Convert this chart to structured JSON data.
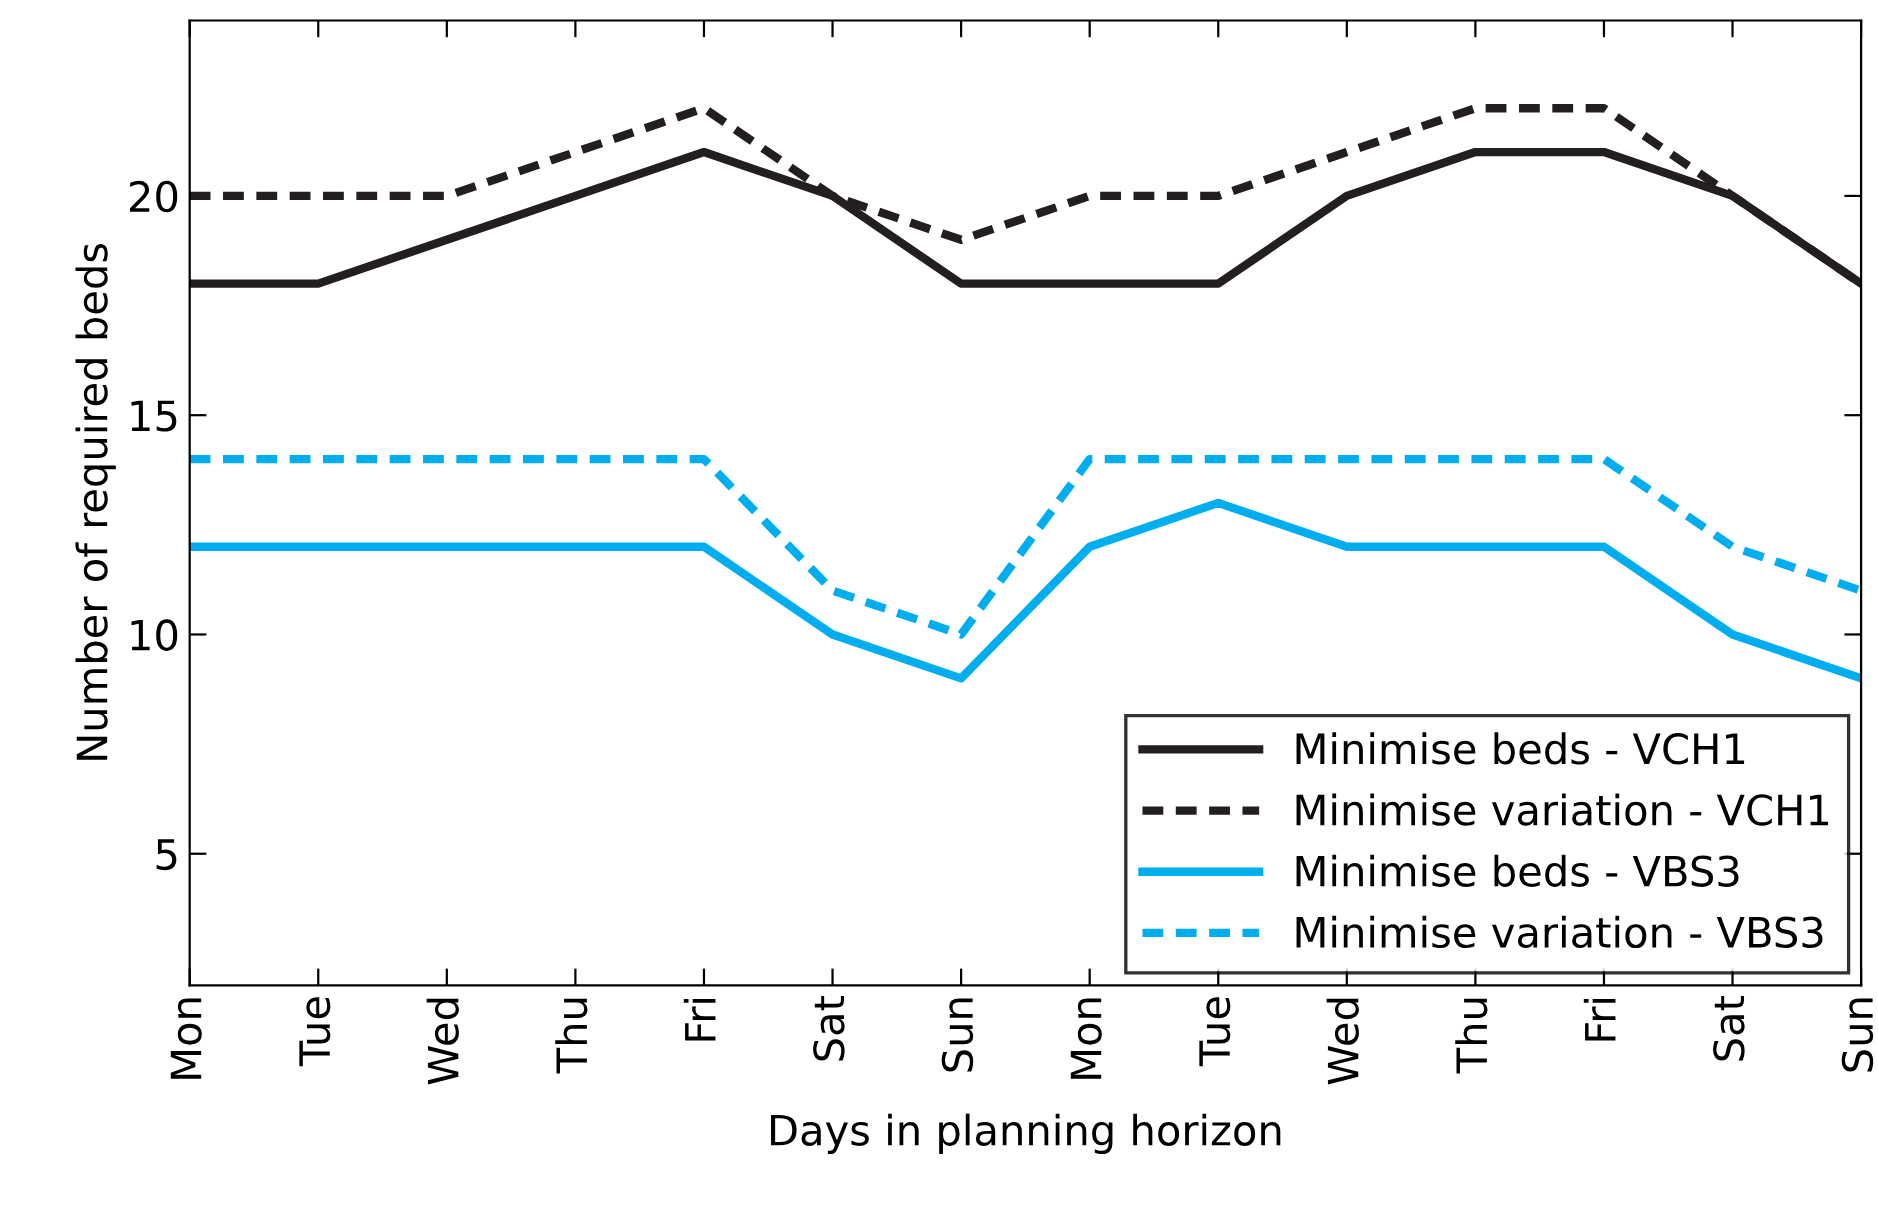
{
  "chart_data": {
    "type": "line",
    "xlabel": "Days in planning horizon",
    "ylabel": "Number of required beds",
    "categories": [
      "Mon",
      "Tue",
      "Wed",
      "Thu",
      "Fri",
      "Sat",
      "Sun",
      "Mon",
      "Tue",
      "Wed",
      "Thu",
      "Fri",
      "Sat",
      "Sun"
    ],
    "ylim": [
      2,
      24
    ],
    "yticks": [
      5,
      10,
      15,
      20
    ],
    "grid": false,
    "legend": "bottom right",
    "marker": "none",
    "series": [
      {
        "name": "Minimise beds - VCH1",
        "color": "#231f20",
        "line_style": "solid",
        "values": [
          18,
          18,
          19,
          20,
          21,
          20,
          18,
          18,
          18,
          20,
          21,
          21,
          20,
          18
        ]
      },
      {
        "name": "Minimise variation - VCH1",
        "color": "#231f20",
        "line_style": "dashed",
        "values": [
          20,
          20,
          20,
          21,
          22,
          20,
          19,
          20,
          20,
          21,
          22,
          22,
          20,
          18
        ]
      },
      {
        "name": "Minimise beds - VBS3",
        "color": "#00aeef",
        "line_style": "solid",
        "values": [
          12,
          12,
          12,
          12,
          12,
          10,
          9,
          12,
          13,
          12,
          12,
          12,
          10,
          9
        ]
      },
      {
        "name": "Minimise variation - VBS3",
        "color": "#00aeef",
        "line_style": "dashed",
        "values": [
          14,
          14,
          14,
          14,
          14,
          11,
          10,
          14,
          14,
          14,
          14,
          14,
          12,
          11
        ]
      }
    ]
  }
}
